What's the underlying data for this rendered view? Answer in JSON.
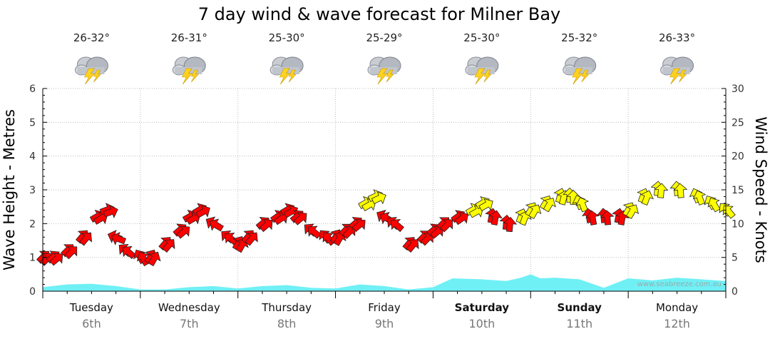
{
  "chart_data": {
    "type": "line",
    "title": "7 day wind & wave forecast for Milner Bay",
    "ylabel_left": "Wave Height - Metres",
    "ylabel_right": "Wind Speed - Knots",
    "ylim_left": [
      0,
      6
    ],
    "ylim_right": [
      0,
      30
    ],
    "yticks_left": [
      "0",
      "1",
      "2",
      "3",
      "4",
      "5",
      "6"
    ],
    "yticks_right": [
      "0",
      "5",
      "10",
      "15",
      "20",
      "25",
      "30"
    ],
    "days": [
      {
        "day": "Tuesday",
        "date": "6th",
        "bold": false,
        "temp": "26-32°",
        "icon": "thunderstorm-icon"
      },
      {
        "day": "Wednesday",
        "date": "7th",
        "bold": false,
        "temp": "26-31°",
        "icon": "thunderstorm-icon"
      },
      {
        "day": "Thursday",
        "date": "8th",
        "bold": false,
        "temp": "25-30°",
        "icon": "thunderstorm-icon"
      },
      {
        "day": "Friday",
        "date": "9th",
        "bold": false,
        "temp": "25-29°",
        "icon": "thunderstorm-icon"
      },
      {
        "day": "Saturday",
        "date": "10th",
        "bold": true,
        "temp": "25-30°",
        "icon": "thunderstorm-icon"
      },
      {
        "day": "Sunday",
        "date": "11th",
        "bold": true,
        "temp": "25-32°",
        "icon": "thunderstorm-icon"
      },
      {
        "day": "Monday",
        "date": "12th",
        "bold": false,
        "temp": "26-33°",
        "icon": "thunderstorm-icon"
      }
    ],
    "series": [
      {
        "name": "Wave Height",
        "axis": "left",
        "color": "#6ff0f5",
        "x_days": [
          0,
          0.25,
          0.5,
          0.75,
          1,
          1.25,
          1.5,
          1.75,
          2,
          2.25,
          2.5,
          2.75,
          3,
          3.25,
          3.5,
          3.75,
          4,
          4.2,
          4.5,
          4.75,
          4.9,
          5,
          5.1,
          5.25,
          5.5,
          5.75,
          6,
          6.25,
          6.5,
          6.75,
          7
        ],
        "values": [
          0.12,
          0.2,
          0.22,
          0.15,
          0.05,
          0.05,
          0.12,
          0.15,
          0.08,
          0.15,
          0.18,
          0.1,
          0.08,
          0.2,
          0.15,
          0.05,
          0.12,
          0.38,
          0.35,
          0.3,
          0.4,
          0.5,
          0.38,
          0.4,
          0.35,
          0.1,
          0.38,
          0.32,
          0.4,
          0.35,
          0.3
        ]
      },
      {
        "name": "Wind Speed",
        "axis": "right",
        "x_days": [
          0,
          0.1,
          0.25,
          0.4,
          0.55,
          0.65,
          0.75,
          0.85,
          1,
          1.1,
          1.25,
          1.4,
          1.5,
          1.6,
          1.75,
          1.9,
          2,
          2.1,
          2.25,
          2.4,
          2.5,
          2.6,
          2.75,
          2.9,
          3,
          3.1,
          3.2,
          3.3,
          3.4,
          3.5,
          3.6,
          3.75,
          3.9,
          4,
          4.1,
          4.25,
          4.4,
          4.5,
          4.6,
          4.75,
          4.9,
          5,
          5.15,
          5.3,
          5.4,
          5.5,
          5.6,
          5.75,
          5.9,
          6,
          6.15,
          6.3,
          6.5,
          6.7,
          6.85,
          7
        ],
        "values": [
          5,
          5,
          6,
          8,
          11,
          12,
          8,
          6,
          5,
          5,
          7,
          9,
          11,
          12,
          10,
          8,
          7,
          8,
          10,
          11,
          12,
          11,
          9,
          8,
          8,
          9,
          10,
          13,
          14,
          11,
          10,
          7,
          8,
          9,
          10,
          11,
          12,
          13,
          11,
          10,
          11,
          12,
          13,
          14,
          14,
          13,
          11,
          11,
          11,
          12,
          14,
          15,
          15,
          14,
          13,
          12
        ],
        "colors": [
          "#ff0000",
          "#ff0000",
          "#ff0000",
          "#ff0000",
          "#ff0000",
          "#ff0000",
          "#ff0000",
          "#ff0000",
          "#ff0000",
          "#ff0000",
          "#ff0000",
          "#ff0000",
          "#ff0000",
          "#ff0000",
          "#ff0000",
          "#ff0000",
          "#ff0000",
          "#ff0000",
          "#ff0000",
          "#ff0000",
          "#ff0000",
          "#ff0000",
          "#ff0000",
          "#ff0000",
          "#ff0000",
          "#ff0000",
          "#ff0000",
          "#ffff00",
          "#ffff00",
          "#ff0000",
          "#ff0000",
          "#ff0000",
          "#ff0000",
          "#ff0000",
          "#ff0000",
          "#ff0000",
          "#ffff00",
          "#ffff00",
          "#ff0000",
          "#ff0000",
          "#ffff00",
          "#ffff00",
          "#ffff00",
          "#ffff00",
          "#ffff00",
          "#ffff00",
          "#ff0000",
          "#ff0000",
          "#ff0000",
          "#ffff00",
          "#ffff00",
          "#ffff00",
          "#ffff00",
          "#ffff00",
          "#ffff00",
          "#ffff00"
        ],
        "directions_deg": [
          45,
          40,
          45,
          50,
          30,
          20,
          160,
          140,
          120,
          60,
          50,
          40,
          30,
          30,
          150,
          140,
          60,
          50,
          40,
          35,
          30,
          40,
          140,
          130,
          60,
          45,
          40,
          30,
          25,
          150,
          140,
          50,
          45,
          40,
          45,
          35,
          30,
          30,
          80,
          85,
          70,
          60,
          60,
          75,
          90,
          110,
          100,
          95,
          80,
          60,
          70,
          85,
          95,
          110,
          120,
          130
        ]
      }
    ],
    "watermark": "www.seabreeze.com.au"
  }
}
